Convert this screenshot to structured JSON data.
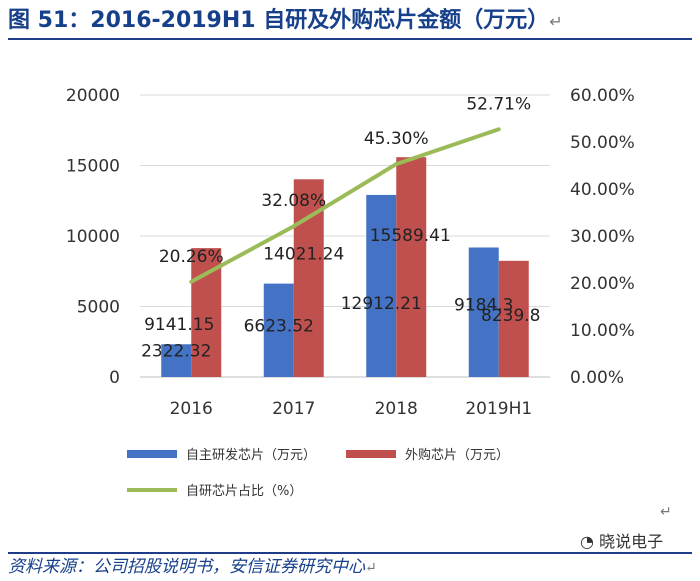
{
  "title": {
    "text": "图 51：2016-2019H1 自研及外购芯片金额（万元）",
    "mark": "↵"
  },
  "source": {
    "text": "资料来源：公司招股说明书，安信证券研究中心",
    "mark": "↵"
  },
  "stray_mark": "↵",
  "watermark": "晓说电子",
  "colors": {
    "self": "#4472c4",
    "outsourced": "#c0504d",
    "ratio": "#9bbb59",
    "header": "#17408b"
  },
  "chart_data": {
    "type": "bar",
    "categories": [
      "2016",
      "2017",
      "2018",
      "2019H1"
    ],
    "series": [
      {
        "name": "自主研发芯片（万元）",
        "values": [
          2322.32,
          6623.52,
          12912.21,
          9184.3
        ],
        "labels": [
          "2322.32",
          "6623.52",
          "12912.21",
          "9184.3"
        ],
        "axis": "left",
        "kind": "bar"
      },
      {
        "name": "外购芯片（万元）",
        "values": [
          9141.15,
          14021.24,
          15589.41,
          8239.8
        ],
        "labels": [
          "9141.15",
          "14021.24",
          "15589.41",
          "8239.8"
        ],
        "axis": "left",
        "kind": "bar"
      },
      {
        "name": "自研芯片占比（%）",
        "values": [
          20.26,
          32.08,
          45.3,
          52.71
        ],
        "labels": [
          "20.26%",
          "32.08%",
          "45.30%",
          "52.71%"
        ],
        "axis": "right",
        "kind": "line"
      }
    ],
    "y_left": {
      "min": 0,
      "max": 20000,
      "ticks": [
        "0",
        "5000",
        "10000",
        "15000",
        "20000"
      ],
      "tick_values": [
        0,
        5000,
        10000,
        15000,
        20000
      ]
    },
    "y_right": {
      "min": 0,
      "max": 60,
      "ticks": [
        "0.00%",
        "10.00%",
        "20.00%",
        "30.00%",
        "40.00%",
        "50.00%",
        "60.00%"
      ],
      "tick_values": [
        0,
        10,
        20,
        30,
        40,
        50,
        60
      ]
    },
    "grid": true,
    "legend": "bottom"
  }
}
